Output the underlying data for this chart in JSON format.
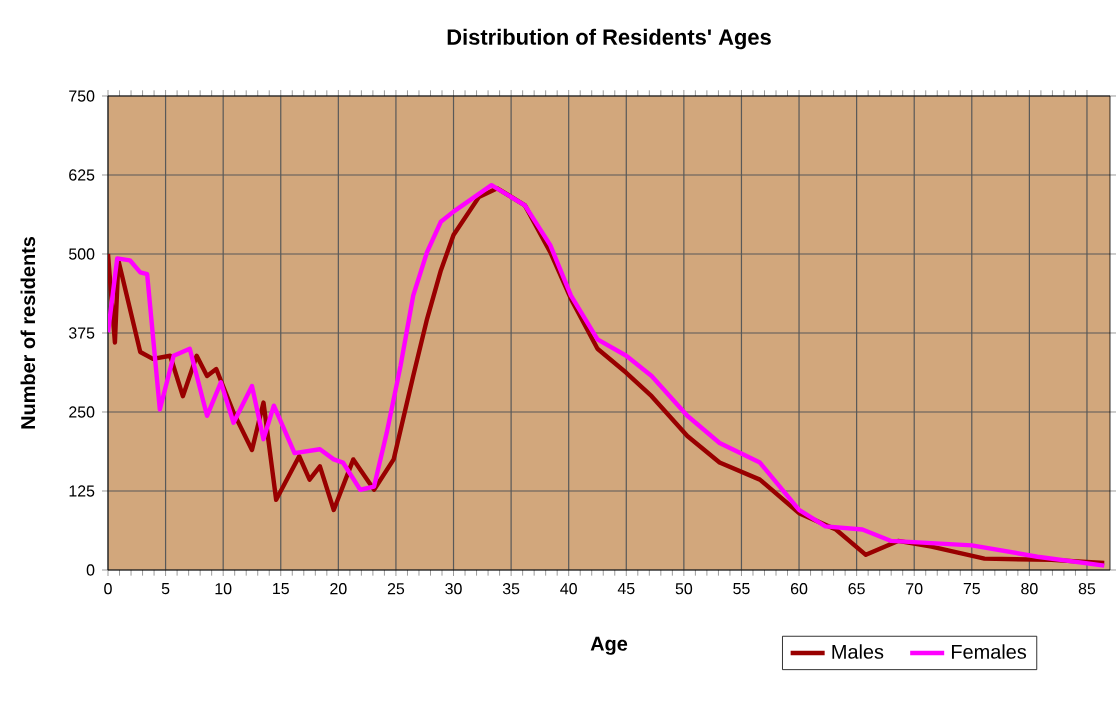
{
  "chart_data": {
    "type": "line",
    "title": "Distribution of Residents' Ages",
    "xlabel": "Age",
    "ylabel": "Number of residents",
    "xlim": [
      0,
      87
    ],
    "xticks": [
      0,
      5,
      10,
      15,
      20,
      25,
      30,
      35,
      40,
      45,
      50,
      55,
      60,
      65,
      70,
      75,
      80,
      85
    ],
    "ylim": [
      0,
      750
    ],
    "yticks": [
      0,
      125,
      250,
      375,
      500,
      625,
      750
    ],
    "grid": true,
    "legend": "bottom right",
    "series": [
      {
        "name": "Males",
        "color": "#990000",
        "x": [
          0,
          0.6,
          0.9,
          2.8,
          3.9,
          5.4,
          6.5,
          7.7,
          8.6,
          9.4,
          10.9,
          12.5,
          13.5,
          14.6,
          16.6,
          17.5,
          18.4,
          19.6,
          21.3,
          23.1,
          24.8,
          26.5,
          27.7,
          28.9,
          30,
          32.2,
          33.8,
          36.2,
          38.4,
          40.2,
          42.5,
          45,
          47.2,
          50.3,
          53.1,
          56.6,
          60,
          63.2,
          65.8,
          68.6,
          71.5,
          76.1,
          81.9,
          86.5
        ],
        "values": [
          500,
          360,
          490,
          345,
          334,
          339,
          275,
          339,
          307,
          318,
          249,
          190,
          265,
          111,
          180,
          143,
          164,
          95,
          175,
          127,
          175,
          307,
          397,
          474,
          530,
          590,
          604,
          577,
          503,
          429,
          350,
          312,
          275,
          212,
          170,
          143,
          90,
          64,
          24,
          46,
          37,
          18,
          16,
          11
        ]
      },
      {
        "name": "Females",
        "color": "#ff00ff",
        "x": [
          0,
          0.8,
          1.9,
          2.8,
          3.4,
          4.5,
          5.7,
          7.1,
          8.6,
          9.8,
          10.9,
          12.5,
          13.5,
          14.4,
          16.2,
          18.4,
          19.6,
          20.4,
          21.9,
          23.1,
          24.2,
          25.4,
          26.5,
          27.7,
          28.9,
          30,
          33.3,
          36.2,
          38.4,
          40.2,
          42.5,
          45,
          47.2,
          50.3,
          53.1,
          56.6,
          60,
          62.3,
          65.5,
          68,
          75,
          80.7,
          86.5
        ],
        "values": [
          376,
          493,
          490,
          471,
          468,
          254,
          339,
          350,
          244,
          297,
          233,
          291,
          207,
          260,
          185,
          191,
          175,
          170,
          127,
          132,
          217,
          323,
          434,
          503,
          551,
          567,
          609,
          577,
          514,
          434,
          365,
          339,
          307,
          244,
          201,
          170,
          95,
          69,
          64,
          46,
          39,
          21,
          7
        ]
      }
    ]
  }
}
